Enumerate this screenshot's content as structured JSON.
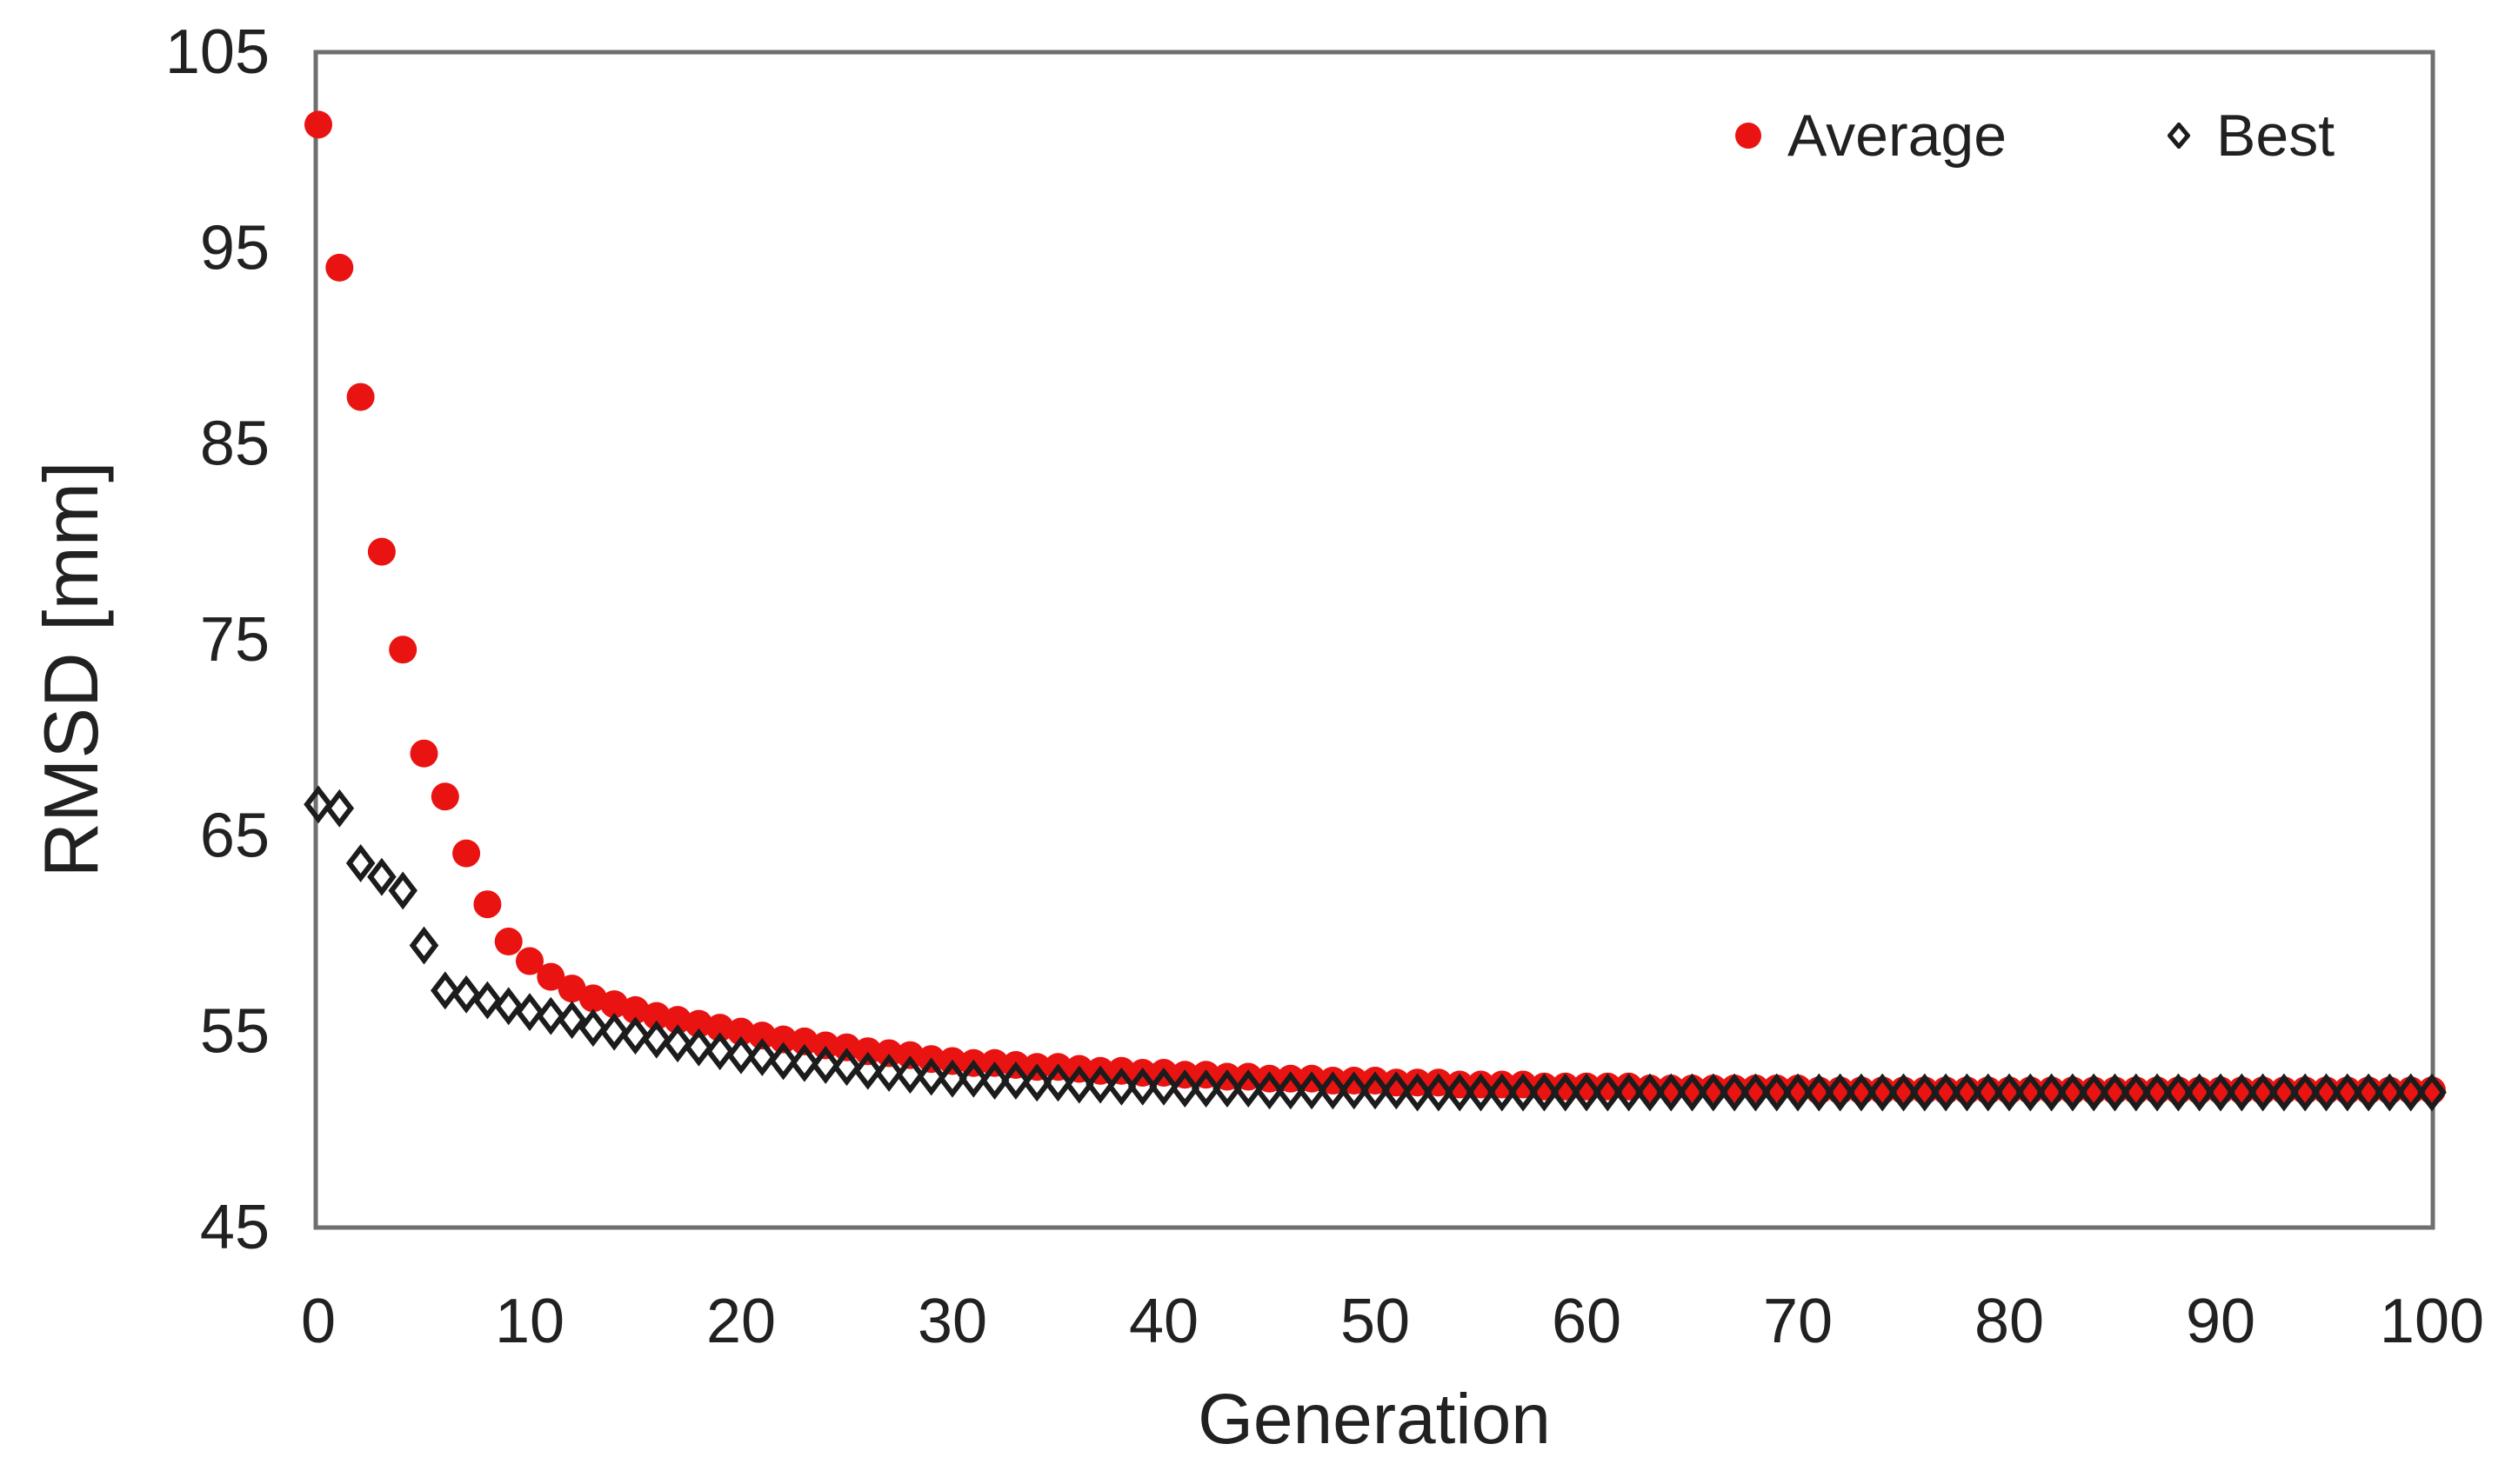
{
  "colors": {
    "background": "#ffffff",
    "axis_border": "#6f6f6f",
    "text": "#212121",
    "average_red": "#e91312",
    "best_black": "#1c1c1c"
  },
  "chart_data": {
    "type": "scatter",
    "title": "",
    "xlabel": "Generation",
    "ylabel": "RMSD [mm]",
    "xlim": [
      0,
      100
    ],
    "ylim": [
      45,
      105
    ],
    "xticks": [
      0,
      10,
      20,
      30,
      40,
      50,
      60,
      70,
      80,
      90,
      100
    ],
    "yticks": [
      45,
      55,
      65,
      75,
      85,
      95,
      105
    ],
    "grid": false,
    "legend_position": "top-right-inside",
    "x": [
      0,
      1,
      2,
      3,
      4,
      5,
      6,
      7,
      8,
      9,
      10,
      11,
      12,
      13,
      14,
      15,
      16,
      17,
      18,
      19,
      20,
      21,
      22,
      23,
      24,
      25,
      26,
      27,
      28,
      29,
      30,
      31,
      32,
      33,
      34,
      35,
      36,
      37,
      38,
      39,
      40,
      41,
      42,
      43,
      44,
      45,
      46,
      47,
      48,
      49,
      50,
      51,
      52,
      53,
      54,
      55,
      56,
      57,
      58,
      59,
      60,
      61,
      62,
      63,
      64,
      65,
      66,
      67,
      68,
      69,
      70,
      71,
      72,
      73,
      74,
      75,
      76,
      77,
      78,
      79,
      80,
      81,
      82,
      83,
      84,
      85,
      86,
      87,
      88,
      89,
      90,
      91,
      92,
      93,
      94,
      95,
      96,
      97,
      98,
      99,
      100
    ],
    "series": [
      {
        "name": "Average",
        "marker": "filled-circle",
        "color": "#e91312",
        "values": [
          101.3,
          94.0,
          87.4,
          79.5,
          74.5,
          69.2,
          67.0,
          64.1,
          61.5,
          59.6,
          58.6,
          57.8,
          57.2,
          56.7,
          56.4,
          56.1,
          55.8,
          55.6,
          55.4,
          55.2,
          55.0,
          54.8,
          54.6,
          54.5,
          54.3,
          54.2,
          54.0,
          53.9,
          53.8,
          53.6,
          53.5,
          53.4,
          53.4,
          53.3,
          53.2,
          53.2,
          53.1,
          53.0,
          53.0,
          52.9,
          52.9,
          52.8,
          52.8,
          52.7,
          52.7,
          52.6,
          52.6,
          52.6,
          52.5,
          52.5,
          52.5,
          52.4,
          52.4,
          52.4,
          52.3,
          52.3,
          52.3,
          52.3,
          52.2,
          52.2,
          52.2,
          52.2,
          52.2,
          52.1,
          52.1,
          52.1,
          52.1,
          52.1,
          52.1,
          52.1,
          52.1,
          52.0,
          52.0,
          52.0,
          52.0,
          52.0,
          52.0,
          52.0,
          52.0,
          52.0,
          52.0,
          52.0,
          52.0,
          52.0,
          52.0,
          52.0,
          52.0,
          52.0,
          52.0,
          52.0,
          52.0,
          52.0,
          52.0,
          52.0,
          52.0,
          52.0,
          52.0,
          52.0,
          52.0,
          52.0,
          52.0
        ]
      },
      {
        "name": "Best",
        "marker": "open-diamond",
        "color": "#1c1c1c",
        "values": [
          66.6,
          66.4,
          63.6,
          62.9,
          62.2,
          59.4,
          57.1,
          56.9,
          56.6,
          56.3,
          56.0,
          55.8,
          55.6,
          55.2,
          55.0,
          54.8,
          54.6,
          54.4,
          54.2,
          54.0,
          53.8,
          53.7,
          53.5,
          53.4,
          53.3,
          53.2,
          53.0,
          52.9,
          52.8,
          52.7,
          52.6,
          52.6,
          52.5,
          52.5,
          52.4,
          52.4,
          52.3,
          52.3,
          52.2,
          52.2,
          52.2,
          52.1,
          52.1,
          52.1,
          52.1,
          52.0,
          52.0,
          52.0,
          52.0,
          52.0,
          52.0,
          52.0,
          51.9,
          51.9,
          51.9,
          51.9,
          51.9,
          51.9,
          51.9,
          51.9,
          51.9,
          51.9,
          51.9,
          51.9,
          51.9,
          51.9,
          51.9,
          51.9,
          51.9,
          51.9,
          51.9,
          51.9,
          51.9,
          51.9,
          51.9,
          51.9,
          51.9,
          51.9,
          51.9,
          51.9,
          51.9,
          51.9,
          51.9,
          51.9,
          51.9,
          51.9,
          51.9,
          51.9,
          51.9,
          51.9,
          51.9,
          51.9,
          51.9,
          51.9,
          51.9,
          51.9,
          51.9,
          51.9,
          51.9,
          51.9,
          51.9
        ]
      }
    ]
  }
}
